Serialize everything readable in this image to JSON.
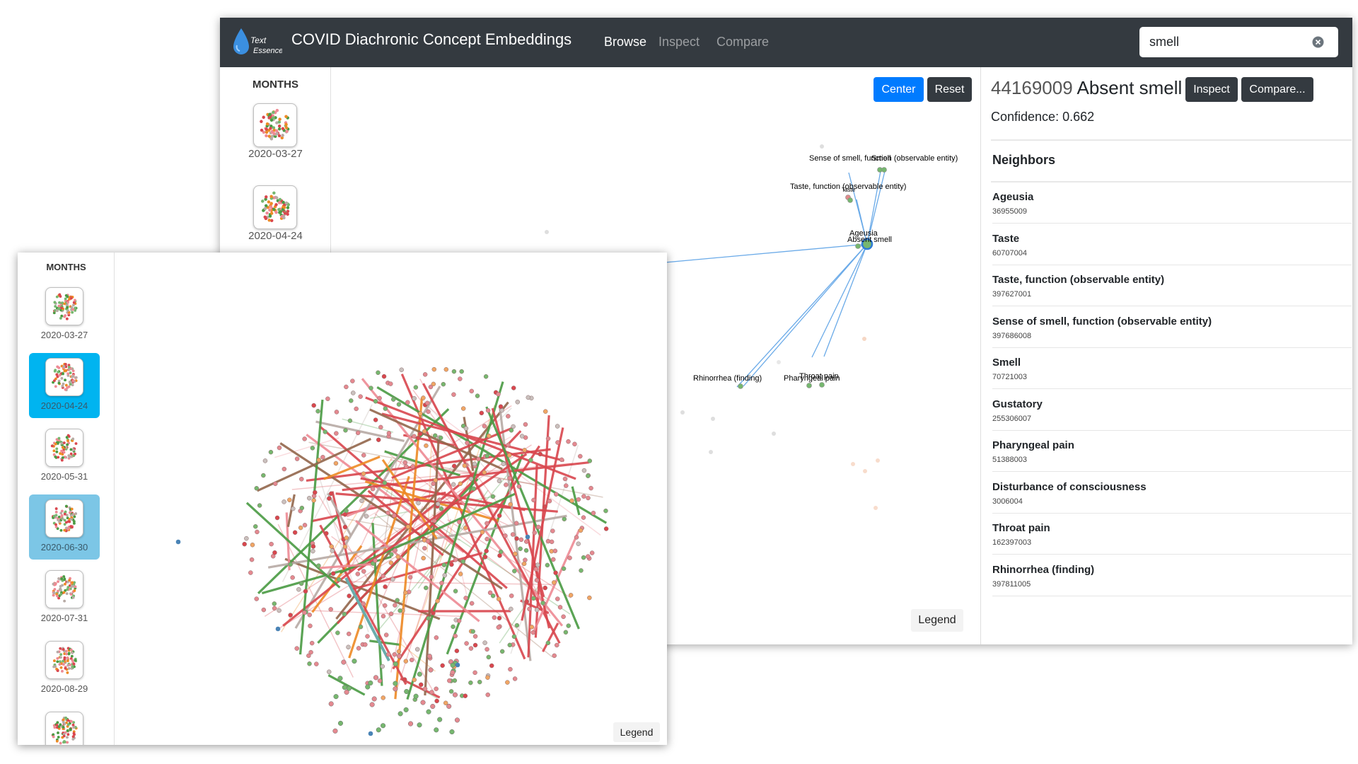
{
  "app": {
    "title": "COVID Diachronic Concept Embeddings",
    "logo_text_line1": "Text",
    "logo_text_line2": "Essence",
    "nav": [
      {
        "label": "Browse",
        "active": true
      },
      {
        "label": "Inspect",
        "active": false
      },
      {
        "label": "Compare",
        "active": false
      }
    ],
    "search": {
      "value": "smell"
    }
  },
  "months_heading": "MONTHS",
  "back_months": [
    {
      "date": "2020-03-27"
    },
    {
      "date": "2020-04-24"
    }
  ],
  "front_months": [
    {
      "date": "2020-03-27",
      "state": "none"
    },
    {
      "date": "2020-04-24",
      "state": "selected"
    },
    {
      "date": "2020-05-31",
      "state": "none"
    },
    {
      "date": "2020-06-30",
      "state": "compare"
    },
    {
      "date": "2020-07-31",
      "state": "none"
    },
    {
      "date": "2020-08-29",
      "state": "none"
    },
    {
      "date": "",
      "state": "none"
    }
  ],
  "graph": {
    "center_label": "Center",
    "reset_label": "Reset",
    "legend_label": "Legend",
    "node_labels": [
      {
        "text": "Sense of smell, function (observable entity)"
      },
      {
        "text": "Smell"
      },
      {
        "text": "Taste, function (observable entity)"
      },
      {
        "text": "Taste"
      },
      {
        "text": "Ageusia"
      },
      {
        "text": "Absent smell"
      },
      {
        "text": "Rhinorrhea (finding)"
      },
      {
        "text": "Pharyngeal pain"
      },
      {
        "text": "Throat pain"
      }
    ]
  },
  "detail": {
    "concept_id": "44169009",
    "concept_name": "Absent smell",
    "inspect_label": "Inspect",
    "compare_label": "Compare...",
    "confidence_label": "Confidence:",
    "confidence_value": "0.662",
    "neighbors_heading": "Neighbors",
    "neighbors": [
      {
        "name": "Ageusia",
        "code": "36955009"
      },
      {
        "name": "Taste",
        "code": "60707004"
      },
      {
        "name": "Taste, function (observable entity)",
        "code": "397627001"
      },
      {
        "name": "Sense of smell, function (observable entity)",
        "code": "397686008"
      },
      {
        "name": "Smell",
        "code": "70721003"
      },
      {
        "name": "Gustatory",
        "code": "255306007"
      },
      {
        "name": "Pharyngeal pain",
        "code": "51388003"
      },
      {
        "name": "Disturbance of consciousness",
        "code": "3006004"
      },
      {
        "name": "Throat pain",
        "code": "162397003"
      },
      {
        "name": "Rhinorrhea (finding)",
        "code": "397811005"
      }
    ]
  },
  "colors": {
    "navbar": "#343a40",
    "primary": "#007bff",
    "dark_button": "#343a40",
    "selected_month": "#00b4f0",
    "compare_month": "#7cc6e6",
    "edge_blue": "#6aaae8",
    "red": "#d9474e",
    "pink": "#ee8a94",
    "green": "#4a9b43",
    "orange": "#ee8a25",
    "brown": "#93674c",
    "gray": "#b7aaa5",
    "teal": "#6aacac",
    "node_green": "#76b76f",
    "blue_node": "#4a84b6"
  }
}
